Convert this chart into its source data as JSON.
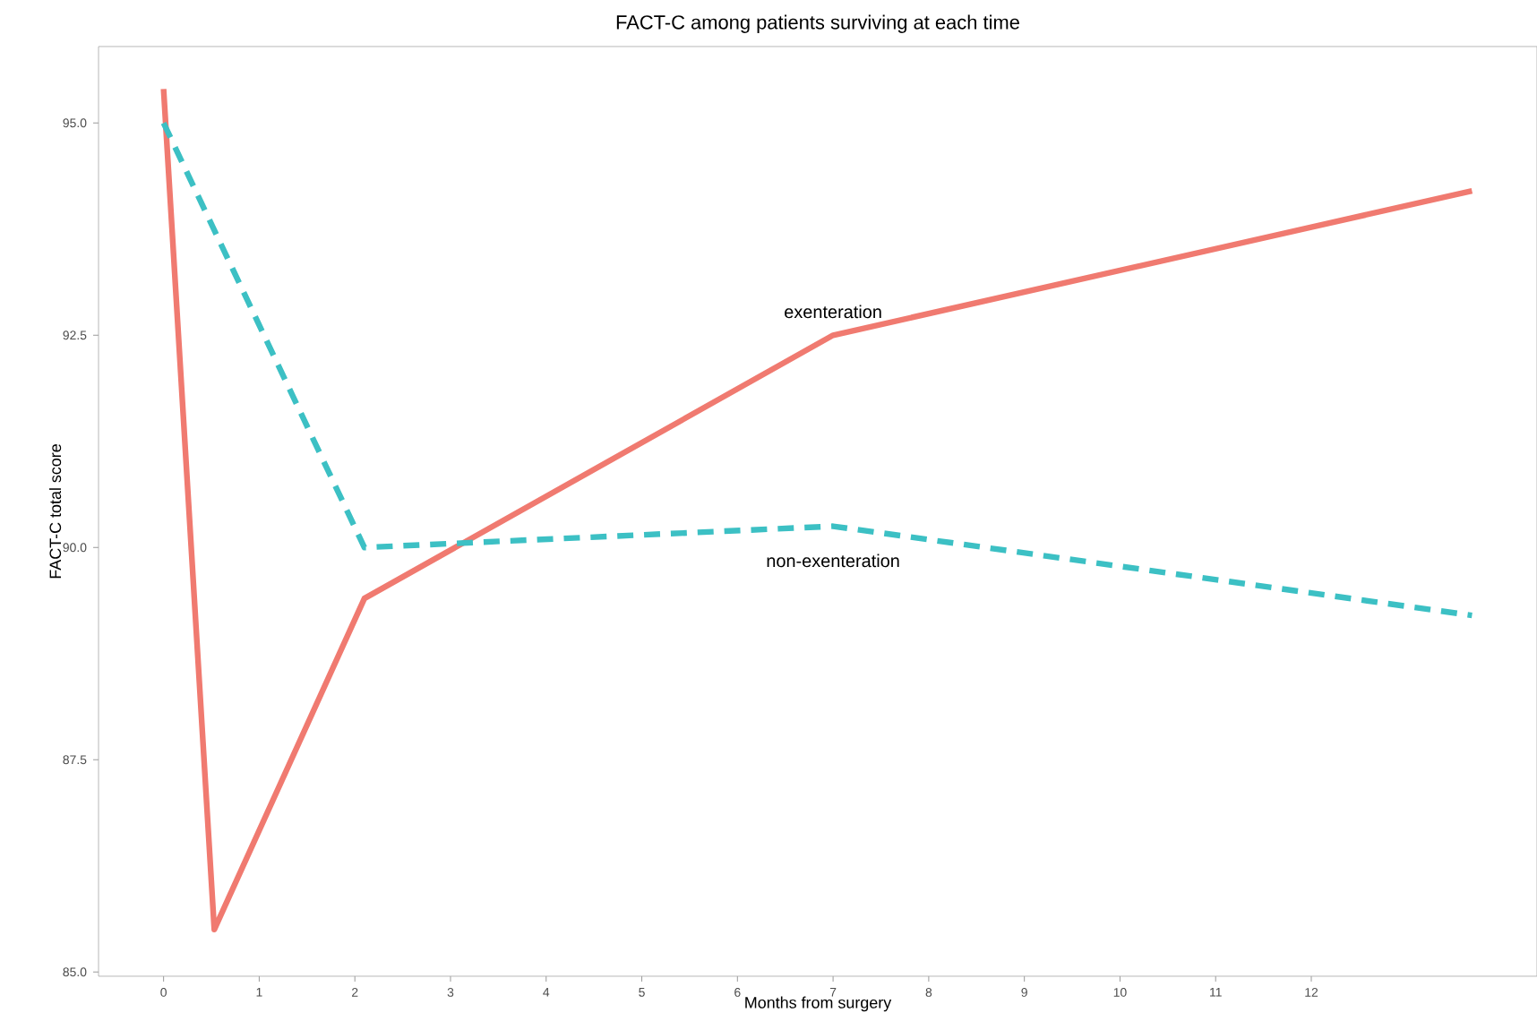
{
  "chart_data": {
    "type": "line",
    "title": "FACT-C among patients surviving at each time",
    "xlabel": "Months from surgery",
    "ylabel": "FACT-C total score",
    "xlim": [
      -0.68,
      14.36
    ],
    "ylim": [
      84.95,
      95.9
    ],
    "xticks": [
      0,
      1,
      2,
      3,
      4,
      5,
      6,
      7,
      8,
      9,
      10,
      11,
      12
    ],
    "yticks": [
      {
        "value": 85,
        "label": "85.0"
      },
      {
        "value": 87.5,
        "label": "87.5"
      },
      {
        "value": 90,
        "label": "90.0"
      },
      {
        "value": 92.5,
        "label": "92.5"
      },
      {
        "value": 95,
        "label": "95.0"
      }
    ],
    "legend": false,
    "grid": false,
    "series": [
      {
        "name": "exenteration",
        "color": "#f07a70",
        "line_style": "solid",
        "x": [
          0,
          0.53,
          2.1,
          7,
          13.68
        ],
        "values": [
          95.4,
          85.5,
          89.4,
          92.5,
          94.2
        ]
      },
      {
        "name": "non-exenteration",
        "color": "#3cc0c4",
        "line_style": "dashed",
        "x": [
          0,
          2.1,
          7,
          13.68
        ],
        "values": [
          95.0,
          90.0,
          90.25,
          89.2
        ]
      }
    ]
  }
}
